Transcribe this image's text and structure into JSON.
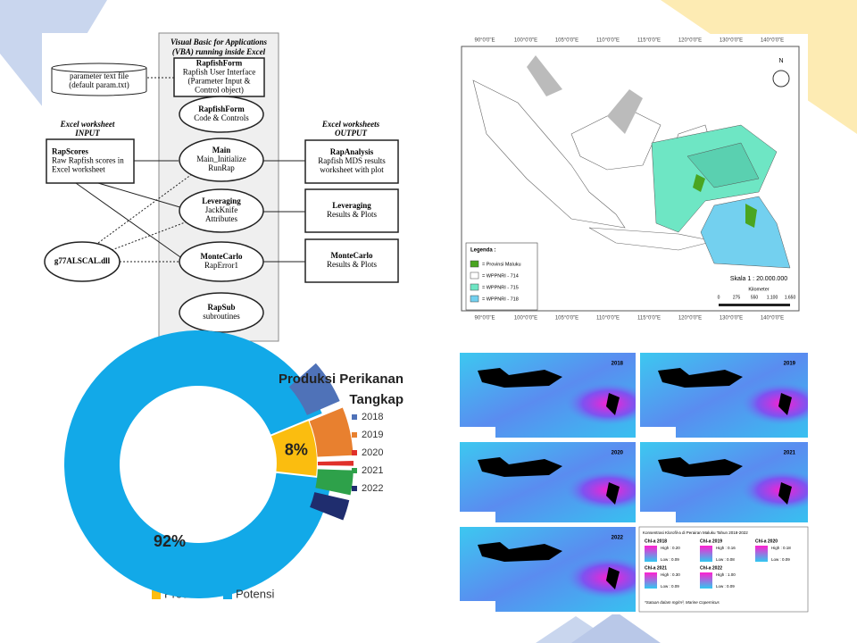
{
  "diagram": {
    "param_file": [
      "parameter text file",
      "(default param.txt)"
    ],
    "vba_title": [
      "Visual Basic for Applications",
      "(VBA) running inside Excel"
    ],
    "input_title": [
      "Excel  worksheet",
      "INPUT"
    ],
    "output_title": [
      "Excel worksheets",
      "OUTPUT"
    ],
    "nodes": [
      {
        "lines": [
          "RapfishForm",
          "Rapfish User Interface",
          "(Parameter Input &",
          "Control object)"
        ]
      },
      {
        "lines": [
          "RapfishForm",
          "Code & Controls"
        ]
      },
      {
        "lines": [
          "Main",
          "Main_Initialize",
          "RunRap"
        ]
      },
      {
        "lines": [
          "Leveraging",
          "JackKnife",
          "Attributes"
        ]
      },
      {
        "lines": [
          "MonteCarlo",
          "RapError1"
        ]
      },
      {
        "lines": [
          "RapSub",
          "subroutines"
        ]
      },
      {
        "lines": [
          "RapScores",
          "Raw Rapfish scores in",
          "Excel worksheet"
        ]
      },
      {
        "lines": [
          "g77ALSCAL.dll"
        ]
      },
      {
        "lines": [
          "RapAnalysis",
          "Rapfish MDS results",
          "worksheet with plot"
        ]
      },
      {
        "lines": [
          "Leveraging",
          "Results & Plots"
        ]
      },
      {
        "lines": [
          "MonteCarlo",
          "Results & Plots"
        ]
      }
    ]
  },
  "map": {
    "lon_labels": [
      "90°0'0\"E",
      "100°0'0\"E",
      "105°0'0\"E",
      "110°0'0\"E",
      "115°0'0\"E",
      "120°0'0\"E",
      "130°0'0\"E",
      "140°0'0\"E"
    ],
    "legend_title": "Legenda :",
    "legend": [
      "= Provinsi  Maluku",
      "= WPPNRI - 714",
      "= WPPNRI - 715",
      "= WPPNRI - 718"
    ],
    "scale": "Skala 1 : 20.000.000",
    "unit": "Kilometer",
    "scale_ticks": [
      "0",
      "275",
      "550",
      "1.100",
      "1.650"
    ]
  },
  "chl_maps": {
    "panels": [
      "2018",
      "2019",
      "2020",
      "2021",
      "2022"
    ],
    "legend_title": "Konsentrasi Klorofil-a di Perairan Maluku Tahun 2018-2022",
    "legend_items": [
      {
        "name": "Chl-a 2018",
        "high": "High : 0.20",
        "low": "Low : 0.09"
      },
      {
        "name": "Chl-a 2019",
        "high": "High : 0.16",
        "low": "Low : 0.08"
      },
      {
        "name": "Chl-a 2020",
        "high": "High : 0.18",
        "low": "Low : 0.09"
      },
      {
        "name": "Chl-a 2021",
        "high": "High : 0.30",
        "low": "Low : 0.09"
      },
      {
        "name": "Chl-a 2022",
        "high": "High : 1.00",
        "low": "Low : 0.09"
      }
    ],
    "note": "*Satuan dalam mg/m³, Marine Copernicus"
  },
  "chart_data": [
    {
      "type": "pie",
      "title": "Produksi Perikanan Tangkap",
      "categories": [
        "Produksi",
        "Potensi"
      ],
      "values": [
        8,
        92
      ],
      "value_labels": [
        "8%",
        "92%"
      ],
      "colors": [
        "#fbbd0f",
        "#12a9e8"
      ],
      "legend": "bottom"
    },
    {
      "type": "pie",
      "categories": [
        "2018",
        "2019",
        "2020",
        "2021",
        "2022"
      ],
      "values": [
        2.4,
        2.6,
        0.4,
        1.4,
        1.2
      ],
      "colors": [
        "#4f72b8",
        "#e8802f",
        "#e0302a",
        "#2ea14a",
        "#1f2d6e"
      ],
      "legend": "right"
    }
  ]
}
